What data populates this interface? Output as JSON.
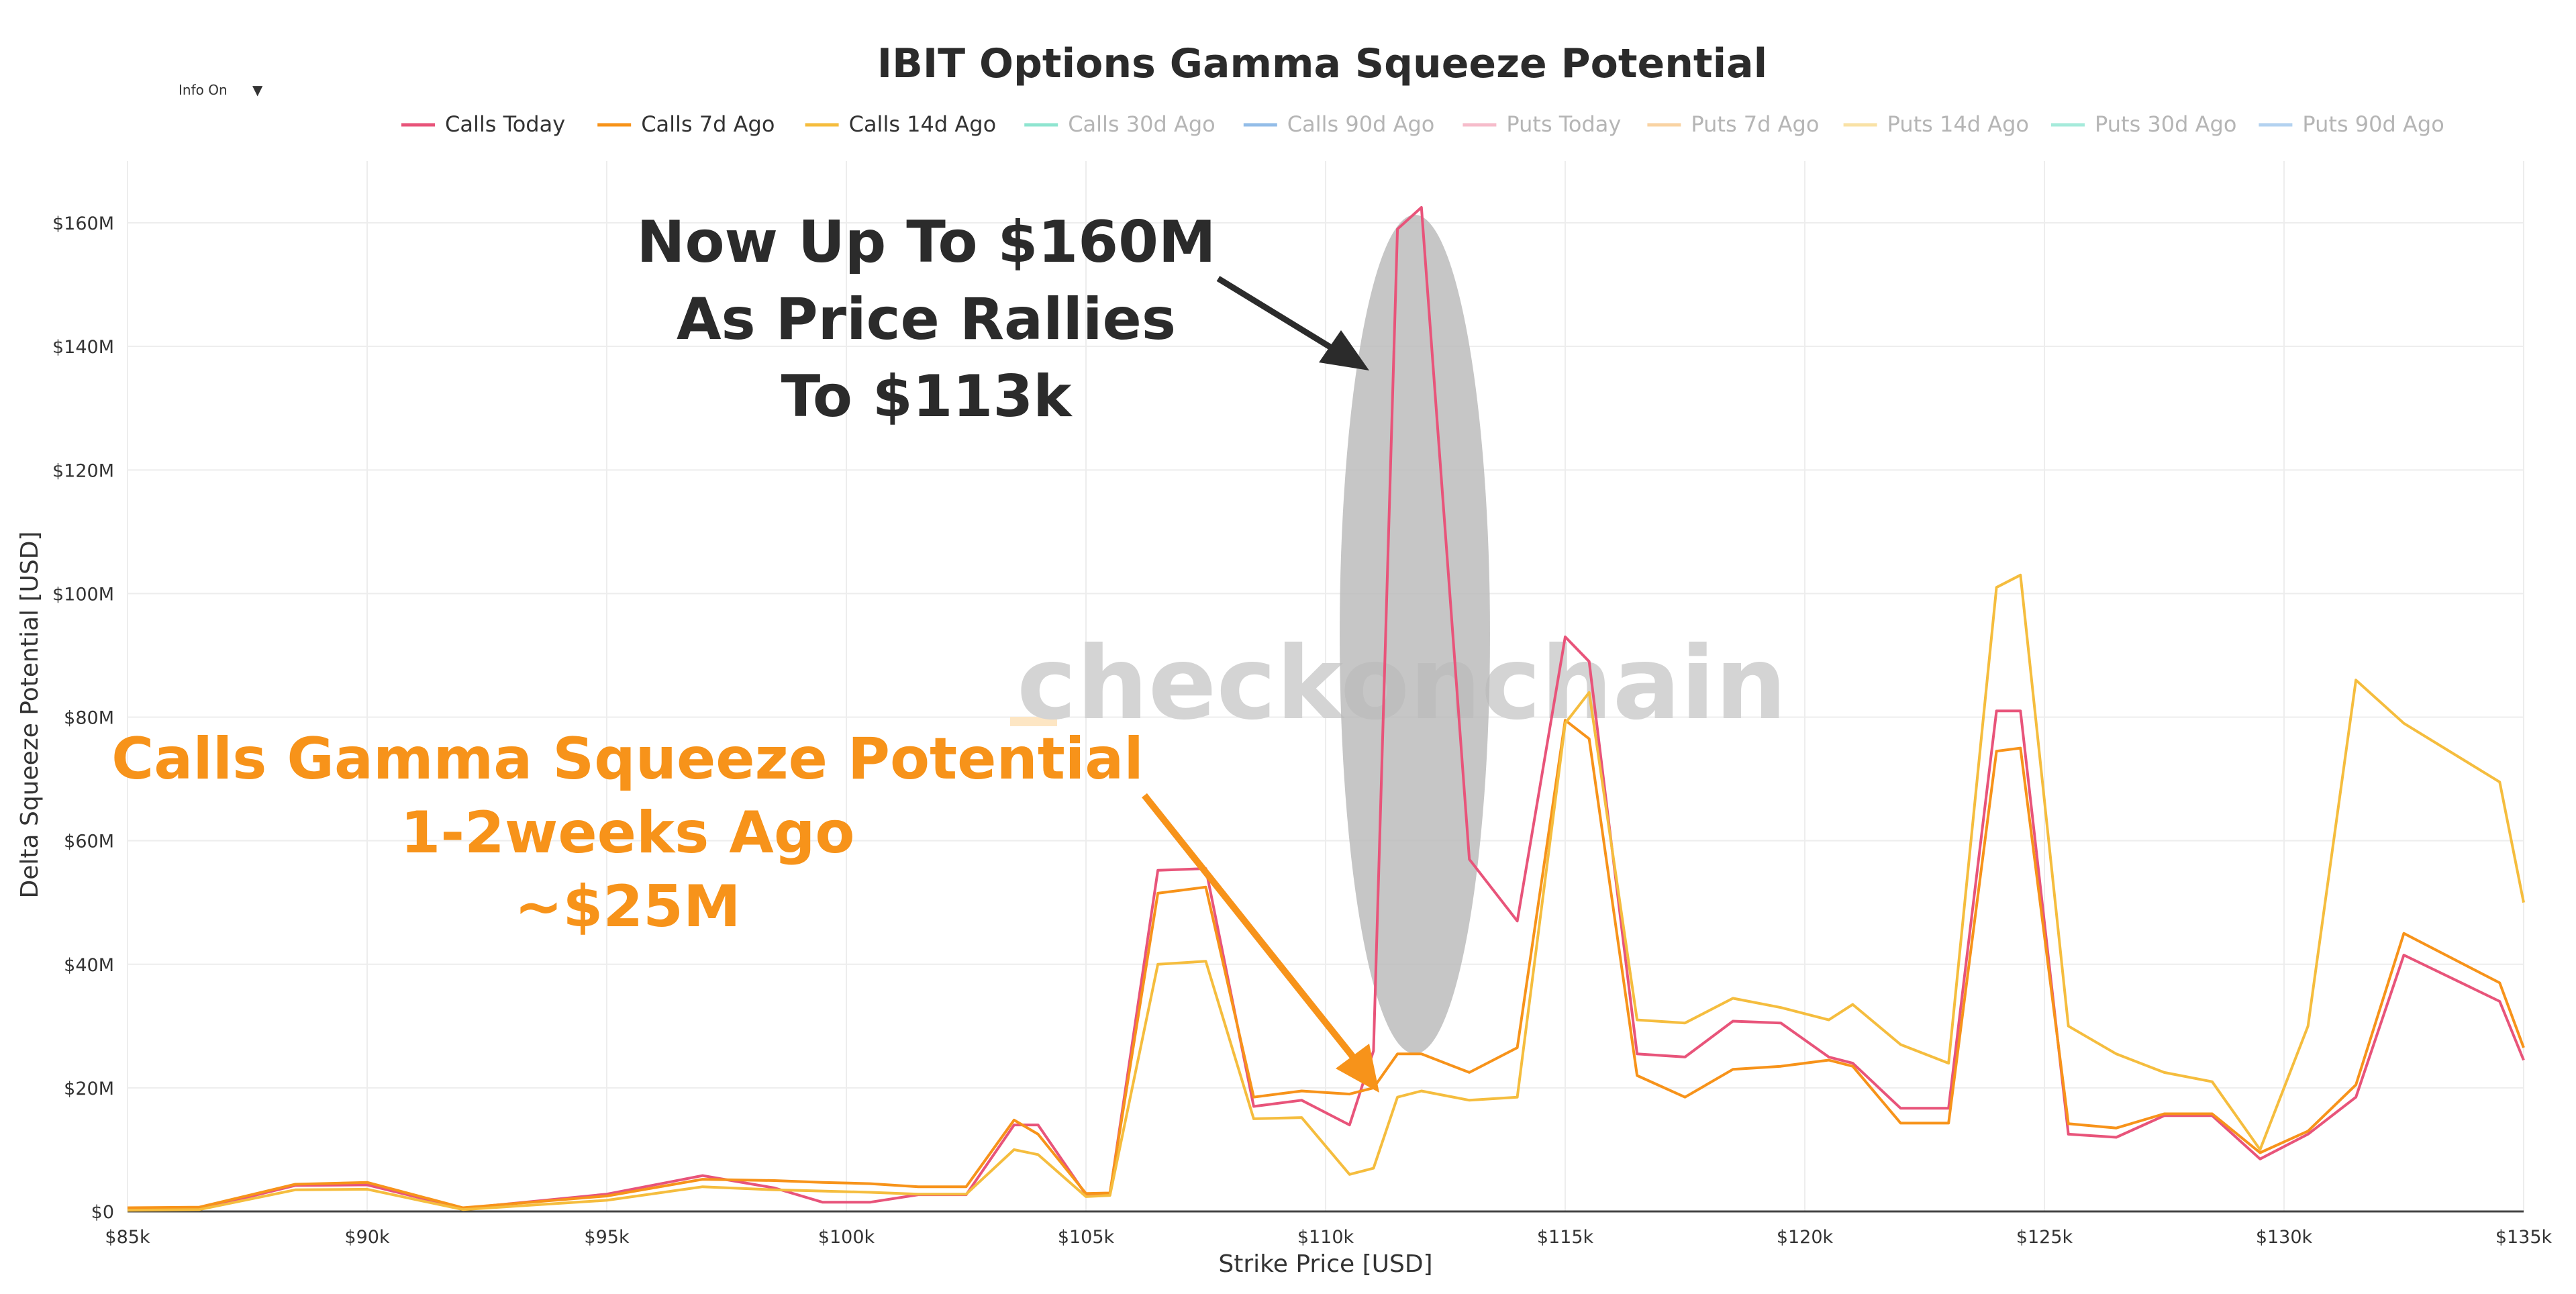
{
  "chart_data": {
    "type": "line",
    "title": "IBIT Options Gamma Squeeze Potential",
    "xlabel": "Strike Price [USD]",
    "ylabel": "Delta Squeeze Potential [USD]",
    "xlim": [
      85000,
      135000
    ],
    "ylim": [
      0,
      170000000
    ],
    "x_ticks": [
      {
        "value": 85000,
        "label": "$85k"
      },
      {
        "value": 90000,
        "label": "$90k"
      },
      {
        "value": 95000,
        "label": "$95k"
      },
      {
        "value": 100000,
        "label": "$100k"
      },
      {
        "value": 105000,
        "label": "$105k"
      },
      {
        "value": 110000,
        "label": "$110k"
      },
      {
        "value": 115000,
        "label": "$115k"
      },
      {
        "value": 120000,
        "label": "$120k"
      },
      {
        "value": 125000,
        "label": "$125k"
      },
      {
        "value": 130000,
        "label": "$130k"
      },
      {
        "value": 135000,
        "label": "$135k"
      }
    ],
    "y_ticks": [
      {
        "value": 0,
        "label": "$0"
      },
      {
        "value": 20000000,
        "label": "$20M"
      },
      {
        "value": 40000000,
        "label": "$40M"
      },
      {
        "value": 60000000,
        "label": "$60M"
      },
      {
        "value": 80000000,
        "label": "$80M"
      },
      {
        "value": 100000000,
        "label": "$100M"
      },
      {
        "value": 120000000,
        "label": "$120M"
      },
      {
        "value": 140000000,
        "label": "$140M"
      },
      {
        "value": 160000000,
        "label": "$160M"
      }
    ],
    "grid": true,
    "legend_position": "top-center",
    "legend": [
      {
        "name": "Calls Today",
        "color": "#e8547a",
        "active": true
      },
      {
        "name": "Calls 7d Ago",
        "color": "#f7931a",
        "active": true
      },
      {
        "name": "Calls 14d Ago",
        "color": "#f5bd3e",
        "active": true
      },
      {
        "name": "Calls 30d Ago",
        "color": "#8fe5d0",
        "active": false
      },
      {
        "name": "Calls 90d Ago",
        "color": "#93bde8",
        "active": false
      },
      {
        "name": "Puts Today",
        "color": "#f6bccb",
        "active": false
      },
      {
        "name": "Puts 7d Ago",
        "color": "#f9d3a3",
        "active": false
      },
      {
        "name": "Puts 14d Ago",
        "color": "#f9e2a6",
        "active": false
      },
      {
        "name": "Puts 30d Ago",
        "color": "#a6ebdb",
        "active": false
      },
      {
        "name": "Puts 90d Ago",
        "color": "#b3d2f0",
        "active": false
      }
    ],
    "series": [
      {
        "name": "Calls Today",
        "color": "#e8547a",
        "x": [
          85000,
          86500,
          88500,
          90000,
          92000,
          95000,
          97000,
          98500,
          99500,
          100500,
          101500,
          102500,
          103500,
          104000,
          105000,
          105500,
          106500,
          107500,
          108500,
          109500,
          110500,
          111000,
          111500,
          112000,
          113000,
          114000,
          115000,
          115500,
          116500,
          117500,
          118500,
          119500,
          120500,
          121000,
          122000,
          123000,
          124000,
          124500,
          125500,
          126500,
          127500,
          128500,
          129500,
          130500,
          131500,
          132500,
          134500,
          135000
        ],
        "y": [
          300000,
          400000,
          4200000,
          4300000,
          500000,
          2800000,
          5800000,
          3800000,
          1500000,
          1500000,
          2700000,
          2700000,
          14000000,
          14000000,
          2700000,
          2800000,
          55200000,
          55500000,
          17000000,
          18000000,
          14000000,
          26000000,
          159000000,
          162500000,
          57000000,
          47000000,
          93000000,
          89000000,
          25500000,
          25000000,
          30800000,
          30500000,
          25000000,
          24000000,
          16700000,
          16700000,
          81000000,
          81000000,
          12500000,
          12000000,
          15500000,
          15500000,
          8500000,
          12500000,
          18500000,
          41500000,
          34000000,
          24500000
        ]
      },
      {
        "name": "Calls 7d Ago",
        "color": "#f7931a",
        "x": [
          85000,
          86500,
          88500,
          90000,
          92000,
          95000,
          97000,
          98500,
          99500,
          100500,
          101500,
          102500,
          103500,
          104000,
          105000,
          105500,
          106500,
          107500,
          108500,
          109500,
          110500,
          111000,
          111500,
          112000,
          113000,
          114000,
          115000,
          115500,
          116500,
          117500,
          118500,
          119500,
          120500,
          121000,
          122000,
          123000,
          124000,
          124500,
          125500,
          126500,
          127500,
          128500,
          129500,
          130500,
          131500,
          132500,
          134500,
          135000
        ],
        "y": [
          600000,
          700000,
          4400000,
          4700000,
          600000,
          2500000,
          5200000,
          5000000,
          4700000,
          4500000,
          4000000,
          4000000,
          14800000,
          12500000,
          2900000,
          3000000,
          51500000,
          52500000,
          18500000,
          19500000,
          19000000,
          20000000,
          25500000,
          25500000,
          22500000,
          26500000,
          79500000,
          76500000,
          22000000,
          18500000,
          23000000,
          23500000,
          24500000,
          23500000,
          14300000,
          14300000,
          74500000,
          75000000,
          14200000,
          13500000,
          15800000,
          15800000,
          9500000,
          13000000,
          20500000,
          45000000,
          37000000,
          26500000
        ]
      },
      {
        "name": "Calls 14d Ago",
        "color": "#f5bd3e",
        "x": [
          85000,
          86500,
          88500,
          90000,
          92000,
          95000,
          97000,
          98500,
          99500,
          100500,
          101500,
          102500,
          103500,
          104000,
          105000,
          105500,
          106500,
          107500,
          108500,
          109500,
          110500,
          111000,
          111500,
          112000,
          113000,
          114000,
          115000,
          115500,
          116500,
          117500,
          118500,
          119500,
          120500,
          121000,
          122000,
          123000,
          124000,
          124500,
          125500,
          126500,
          127500,
          128500,
          129500,
          130500,
          131500,
          132500,
          134500,
          135000
        ],
        "y": [
          200000,
          300000,
          3500000,
          3600000,
          300000,
          1800000,
          4000000,
          3500000,
          3300000,
          3100000,
          2800000,
          2800000,
          10000000,
          9200000,
          2400000,
          2600000,
          40000000,
          40500000,
          15000000,
          15200000,
          6000000,
          7000000,
          18500000,
          19500000,
          18000000,
          18500000,
          79000000,
          84000000,
          31000000,
          30500000,
          34500000,
          33000000,
          31000000,
          33500000,
          27000000,
          24000000,
          101000000,
          103000000,
          30000000,
          25500000,
          22500000,
          21000000,
          10000000,
          30000000,
          86000000,
          79000000,
          69500000,
          50000000
        ]
      }
    ],
    "annotations": {
      "peak_lines": [
        "Now Up To $160M",
        "As Price Rallies",
        "To $113k"
      ],
      "past_lines": [
        "Calls Gamma Squeeze Potential",
        "1-2weeks Ago",
        "~$25M"
      ]
    },
    "watermark": "checkonchain"
  },
  "controls": {
    "info_toggle_label": "Info On",
    "info_toggle_caret": "▼"
  }
}
